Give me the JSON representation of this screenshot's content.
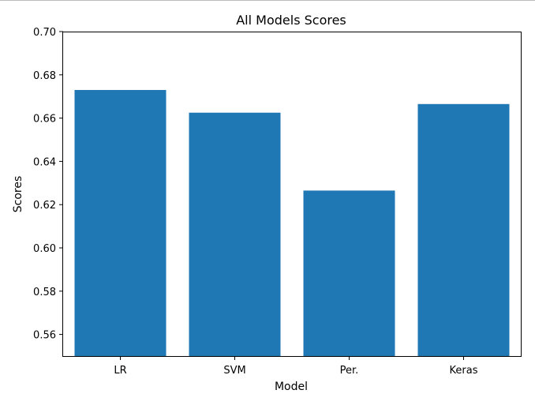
{
  "chart_data": {
    "type": "bar",
    "title": "All Models Scores",
    "xlabel": "Model",
    "ylabel": "Scores",
    "categories": [
      "LR",
      "SVM",
      "Per.",
      "Keras"
    ],
    "values": [
      0.673,
      0.6625,
      0.6265,
      0.6665
    ],
    "ylim": [
      0.55,
      0.7
    ],
    "yticks": [
      "0.56",
      "0.58",
      "0.60",
      "0.62",
      "0.64",
      "0.66",
      "0.68",
      "0.70"
    ],
    "bar_color": "#1f77b4",
    "grid": false
  }
}
